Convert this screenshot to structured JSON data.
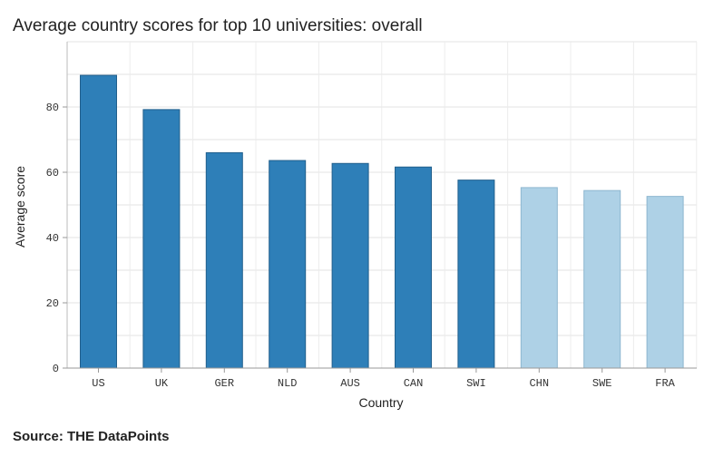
{
  "chart_data": {
    "type": "bar",
    "title": "Average country scores for top 10 universities: overall",
    "xlabel": "Country",
    "ylabel": "Average score",
    "categories": [
      "US",
      "UK",
      "GER",
      "NLD",
      "AUS",
      "CAN",
      "SWI",
      "CHN",
      "SWE",
      "FRA"
    ],
    "values": [
      89.7,
      79.2,
      66.0,
      63.6,
      62.7,
      61.6,
      57.6,
      55.3,
      54.4,
      52.6
    ],
    "ylim": [
      0,
      100
    ],
    "yticks": [
      0,
      20,
      40,
      60,
      80
    ],
    "grid": true,
    "colors": [
      "#2e7fb8",
      "#2e7fb8",
      "#2e7fb8",
      "#2e7fb8",
      "#2e7fb8",
      "#2e7fb8",
      "#2e7fb8",
      "#aed1e6",
      "#aed1e6",
      "#aed1e6"
    ],
    "stroke_colors": [
      "#215f8c",
      "#215f8c",
      "#215f8c",
      "#215f8c",
      "#215f8c",
      "#215f8c",
      "#215f8c",
      "#8db6cf",
      "#8db6cf",
      "#8db6cf"
    ]
  },
  "source": "Source: THE DataPoints"
}
